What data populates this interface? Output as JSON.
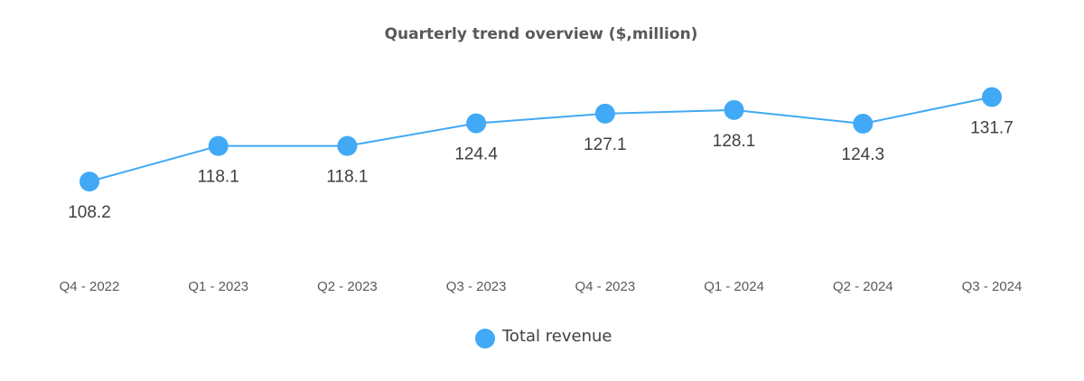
{
  "chart_data": {
    "type": "line",
    "title": "Quarterly trend overview ($,million)",
    "categories": [
      "Q4 - 2022",
      "Q1 - 2023",
      "Q2 - 2023",
      "Q3 - 2023",
      "Q4 - 2023",
      "Q1 - 2024",
      "Q2 - 2024",
      "Q3 - 2024"
    ],
    "series": [
      {
        "name": "Total revenue",
        "values": [
          108.2,
          118.1,
          118.1,
          124.4,
          127.1,
          128.1,
          124.3,
          131.7
        ],
        "labels": [
          "108.2",
          "118.1",
          "118.1",
          "124.4",
          "127.1",
          "128.1",
          "124.3",
          "131.7"
        ],
        "color": "#41A9F5"
      }
    ],
    "xlabel": "",
    "ylabel": "",
    "grid": false,
    "legend": "bottom-center"
  }
}
